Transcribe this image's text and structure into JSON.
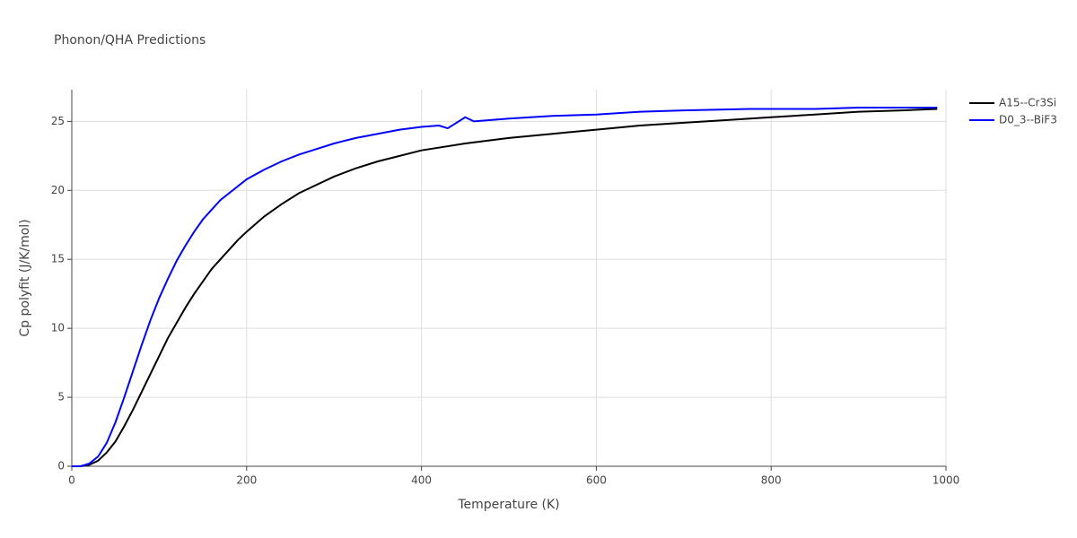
{
  "chart_data": {
    "type": "line",
    "title": "Phonon/QHA Predictions",
    "x_label": "Temperature (K)",
    "y_label": "Cp polyfit (J/K/mol)",
    "xlim": [
      0,
      1000
    ],
    "xticks": [
      0,
      200,
      400,
      600,
      800,
      1000
    ],
    "ylim": [
      0,
      27.3
    ],
    "yticks": [
      0,
      5,
      10,
      15,
      20,
      25
    ],
    "grid": true,
    "legend": "right",
    "series": [
      {
        "name": "A15--Cr3Si",
        "color": "#000000",
        "x": [
          0,
          10,
          20,
          30,
          40,
          50,
          60,
          70,
          80,
          90,
          100,
          110,
          120,
          130,
          140,
          150,
          160,
          170,
          180,
          190,
          200,
          220,
          240,
          260,
          280,
          300,
          325,
          350,
          375,
          400,
          450,
          500,
          550,
          600,
          650,
          700,
          750,
          800,
          850,
          900,
          950,
          990
        ],
        "values": [
          0,
          0,
          0.1,
          0.4,
          1.0,
          1.8,
          2.9,
          4.1,
          5.4,
          6.7,
          8.0,
          9.3,
          10.4,
          11.5,
          12.5,
          13.4,
          14.3,
          15.0,
          15.7,
          16.4,
          17.0,
          18.1,
          19.0,
          19.8,
          20.4,
          21.0,
          21.6,
          22.1,
          22.5,
          22.9,
          23.4,
          23.8,
          24.1,
          24.4,
          24.7,
          24.9,
          25.1,
          25.3,
          25.5,
          25.7,
          25.8,
          25.9
        ]
      },
      {
        "name": "D0_3--BiF3",
        "color": "#0000ff",
        "x": [
          0,
          10,
          20,
          30,
          40,
          50,
          60,
          70,
          80,
          90,
          100,
          110,
          120,
          130,
          140,
          150,
          160,
          170,
          180,
          190,
          200,
          220,
          240,
          260,
          280,
          300,
          325,
          350,
          375,
          400,
          420,
          430,
          450,
          460,
          500,
          550,
          600,
          650,
          700,
          775,
          850,
          900,
          990
        ],
        "values": [
          0,
          0,
          0.2,
          0.7,
          1.7,
          3.2,
          5.0,
          6.9,
          8.8,
          10.6,
          12.2,
          13.6,
          14.9,
          16.0,
          17.0,
          17.9,
          18.6,
          19.3,
          19.8,
          20.3,
          20.8,
          21.5,
          22.1,
          22.6,
          23.0,
          23.4,
          23.8,
          24.1,
          24.4,
          24.6,
          24.7,
          24.5,
          25.3,
          25.0,
          25.2,
          25.4,
          25.5,
          25.7,
          25.8,
          25.9,
          25.9,
          26.0,
          26.0
        ]
      }
    ]
  }
}
